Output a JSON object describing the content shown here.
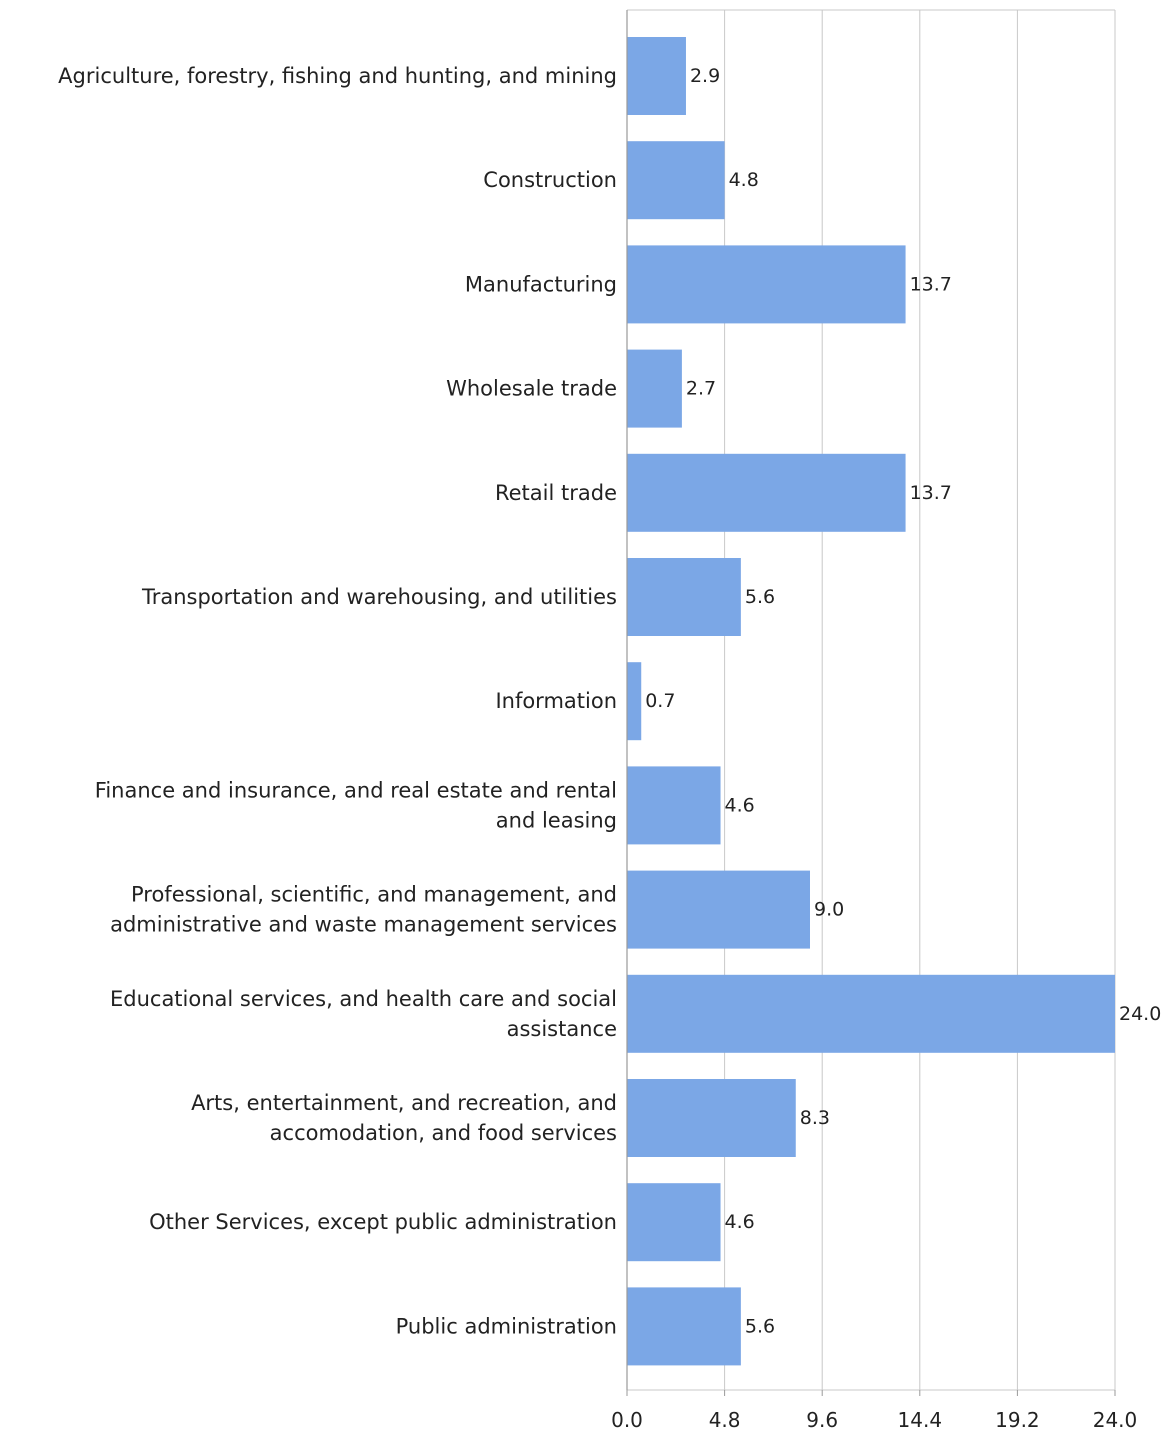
{
  "chart_data": {
    "type": "bar",
    "orientation": "horizontal",
    "categories": [
      [
        "Agriculture, forestry, fishing and hunting, and mining"
      ],
      [
        "Construction"
      ],
      [
        "Manufacturing"
      ],
      [
        "Wholesale trade"
      ],
      [
        "Retail trade"
      ],
      [
        "Transportation and warehousing, and utilities"
      ],
      [
        "Information"
      ],
      [
        "Finance and insurance, and real estate and rental",
        "and leasing"
      ],
      [
        "Professional, scientific, and management, and",
        "administrative and waste management services"
      ],
      [
        "Educational services, and health care and social",
        "assistance"
      ],
      [
        "Arts, entertainment, and recreation, and",
        "accomodation, and food services"
      ],
      [
        "Other Services, except public administration"
      ],
      [
        "Public administration"
      ]
    ],
    "values": [
      2.9,
      4.8,
      13.7,
      2.7,
      13.7,
      5.6,
      0.7,
      4.6,
      9.0,
      24.0,
      8.3,
      4.6,
      5.6
    ],
    "value_labels": [
      "2.9",
      "4.8",
      "13.7",
      "2.7",
      "13.7",
      "5.6",
      "0.7",
      "4.6",
      "9.0",
      "24.0",
      "8.3",
      "4.6",
      "5.6"
    ],
    "xticks": [
      0.0,
      4.8,
      9.6,
      14.4,
      19.2,
      24.0
    ],
    "xtick_labels": [
      "0.0",
      "4.8",
      "9.6",
      "14.4",
      "19.2",
      "24.0"
    ],
    "xlim": [
      0,
      24.0
    ],
    "grid": "vertical",
    "legend": "none",
    "title": "",
    "xlabel": "",
    "ylabel": "",
    "colors": {
      "bar": "#7ba7e6",
      "grid": "#c8c8c8",
      "text": "#222222"
    }
  }
}
